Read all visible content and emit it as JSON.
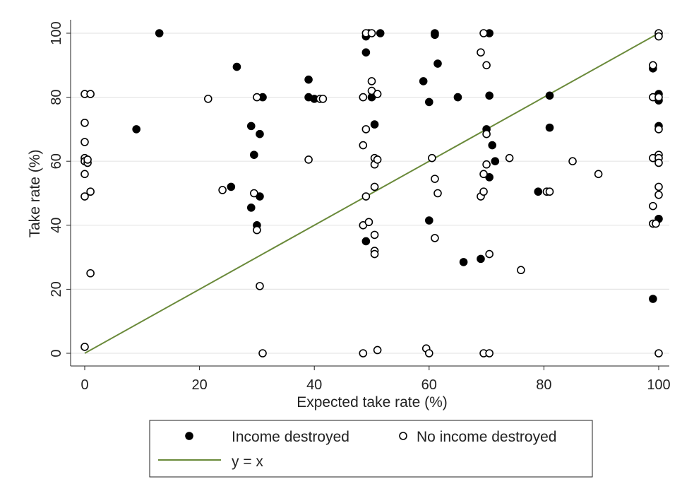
{
  "chart_data": {
    "type": "scatter",
    "xlabel": "Expected take rate (%)",
    "ylabel": "Take rate (%)",
    "xlim": [
      0,
      100
    ],
    "ylim": [
      0,
      100
    ],
    "x_ticks": [
      "0",
      "20",
      "40",
      "60",
      "80",
      "100"
    ],
    "y_ticks": [
      "0",
      "20",
      "40",
      "60",
      "80",
      "100"
    ],
    "grid": "horizontal",
    "legend_position": "bottom",
    "series": [
      {
        "name": "Income destroyed",
        "marker": "filled-circle",
        "color": "#000000",
        "points": [
          [
            13,
            100
          ],
          [
            9,
            70
          ],
          [
            26.5,
            89.5
          ],
          [
            25.5,
            52
          ],
          [
            29,
            71
          ],
          [
            29,
            45.5
          ],
          [
            29.5,
            62
          ],
          [
            30,
            40
          ],
          [
            30.5,
            68.5
          ],
          [
            30.5,
            49
          ],
          [
            31,
            80
          ],
          [
            39,
            80
          ],
          [
            39,
            85.5
          ],
          [
            40,
            79.5
          ],
          [
            49,
            35
          ],
          [
            49,
            94
          ],
          [
            49,
            99
          ],
          [
            49.5,
            100
          ],
          [
            50,
            80
          ],
          [
            50.5,
            71.5
          ],
          [
            51.5,
            100
          ],
          [
            59,
            85
          ],
          [
            60,
            78.5
          ],
          [
            60,
            41.5
          ],
          [
            61,
            99.5
          ],
          [
            61,
            100
          ],
          [
            61.5,
            90.5
          ],
          [
            65,
            80
          ],
          [
            66,
            28.5
          ],
          [
            69,
            29.5
          ],
          [
            70,
            70
          ],
          [
            70.5,
            55
          ],
          [
            70.5,
            80.5
          ],
          [
            70.5,
            100
          ],
          [
            71,
            65
          ],
          [
            71.5,
            60
          ],
          [
            79,
            50.5
          ],
          [
            81,
            80.5
          ],
          [
            81,
            70.5
          ],
          [
            99,
            17
          ],
          [
            99,
            89
          ],
          [
            100,
            79
          ],
          [
            100,
            81
          ],
          [
            100,
            71
          ],
          [
            100,
            42
          ]
        ]
      },
      {
        "name": "No income destroyed",
        "marker": "hollow-circle",
        "color": "#000000",
        "points": [
          [
            0,
            2
          ],
          [
            0,
            49
          ],
          [
            0,
            56
          ],
          [
            0,
            61
          ],
          [
            0,
            60
          ],
          [
            0,
            66
          ],
          [
            0,
            72
          ],
          [
            0,
            81
          ],
          [
            0.5,
            59.5
          ],
          [
            0.5,
            60.5
          ],
          [
            1,
            50.5
          ],
          [
            1,
            25
          ],
          [
            1,
            81
          ],
          [
            21.5,
            79.5
          ],
          [
            24,
            51
          ],
          [
            29.5,
            50
          ],
          [
            30,
            80
          ],
          [
            30,
            38.5
          ],
          [
            30.5,
            21
          ],
          [
            31,
            0
          ],
          [
            39,
            60.5
          ],
          [
            41,
            79.5
          ],
          [
            41.5,
            79.5
          ],
          [
            48.5,
            0
          ],
          [
            48.5,
            80
          ],
          [
            48.5,
            65
          ],
          [
            48.5,
            40
          ],
          [
            49,
            70
          ],
          [
            49,
            49
          ],
          [
            49,
            100
          ],
          [
            49.5,
            41
          ],
          [
            50,
            85
          ],
          [
            50,
            82
          ],
          [
            50,
            100
          ],
          [
            50.5,
            37
          ],
          [
            50.5,
            52
          ],
          [
            50.5,
            61
          ],
          [
            50.5,
            59
          ],
          [
            50.5,
            32
          ],
          [
            50.5,
            31
          ],
          [
            51,
            81
          ],
          [
            51,
            1
          ],
          [
            51,
            60.5
          ],
          [
            59.5,
            1.5
          ],
          [
            60,
            0
          ],
          [
            60.5,
            61
          ],
          [
            61,
            54.5
          ],
          [
            61,
            36
          ],
          [
            61.5,
            50
          ],
          [
            69,
            94
          ],
          [
            69,
            49
          ],
          [
            69.5,
            100
          ],
          [
            69.5,
            56
          ],
          [
            69.5,
            50.5
          ],
          [
            69.5,
            0
          ],
          [
            70,
            68.5
          ],
          [
            70,
            59
          ],
          [
            70,
            90
          ],
          [
            70.5,
            31
          ],
          [
            70.5,
            0
          ],
          [
            74,
            61
          ],
          [
            76,
            26
          ],
          [
            80.5,
            50.5
          ],
          [
            81,
            50.5
          ],
          [
            85,
            60
          ],
          [
            89.5,
            56
          ],
          [
            99,
            90
          ],
          [
            99,
            80
          ],
          [
            99,
            61
          ],
          [
            99,
            46
          ],
          [
            99,
            40.5
          ],
          [
            99.5,
            40.5
          ],
          [
            100,
            100
          ],
          [
            100,
            99
          ],
          [
            100,
            80
          ],
          [
            100,
            70
          ],
          [
            100,
            62
          ],
          [
            100,
            61
          ],
          [
            100,
            59.5
          ],
          [
            100,
            52
          ],
          [
            100,
            49.5
          ],
          [
            100,
            0
          ]
        ]
      }
    ],
    "line": {
      "name": "y = x",
      "color": "#6a8a3a",
      "points": [
        [
          0,
          0
        ],
        [
          100,
          100
        ]
      ]
    }
  },
  "legend": {
    "filled_label": "Income destroyed",
    "hollow_label": "No income destroyed",
    "line_label": "y = x"
  }
}
